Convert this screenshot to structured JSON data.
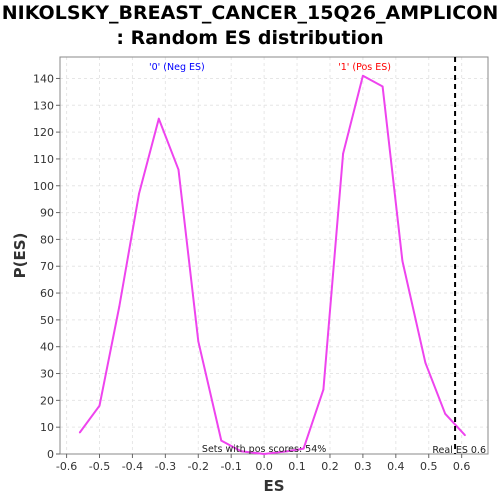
{
  "chart_data": {
    "type": "line",
    "title_line1": "NIKOLSKY_BREAST_CANCER_15Q26_AMPLICON",
    "title_line2": ": Random ES distribution",
    "xlabel": "ES",
    "ylabel": "P(ES)",
    "xlim": [
      -0.62,
      0.68
    ],
    "ylim": [
      0,
      148
    ],
    "x_ticks": [
      "-0.6",
      "-0.5",
      "-0.4",
      "-0.3",
      "-0.2",
      "-0.1",
      "0.0",
      "0.1",
      "0.2",
      "0.3",
      "0.4",
      "0.5",
      "0.6"
    ],
    "y_ticks": [
      "0",
      "10",
      "20",
      "30",
      "40",
      "50",
      "60",
      "70",
      "80",
      "90",
      "100",
      "110",
      "120",
      "130",
      "140"
    ],
    "grid": true,
    "series": [
      {
        "color": "#ee44ee",
        "x": [
          -0.56,
          -0.5,
          -0.44,
          -0.38,
          -0.32,
          -0.26,
          -0.2,
          -0.13,
          -0.07,
          0.0,
          0.07,
          0.12,
          0.18,
          0.24,
          0.3,
          0.36,
          0.42,
          0.49,
          0.55,
          0.61
        ],
        "y": [
          8,
          18,
          55,
          97,
          125,
          106,
          42,
          5,
          1,
          0,
          1,
          2,
          24,
          112,
          141,
          137,
          72,
          34,
          15,
          7
        ]
      }
    ],
    "annotations": {
      "neg_label": "'0' (Neg ES)",
      "pos_label": "'1' (Pos ES)",
      "sets_text": "Sets with pos scores: 54%",
      "real_es_text": "Real ES 0.6"
    },
    "real_es": 0.58,
    "colors": {
      "neg": "#0000ff",
      "pos": "#ff0000",
      "line": "#ee44ee",
      "real_es_line": "#000000"
    }
  }
}
